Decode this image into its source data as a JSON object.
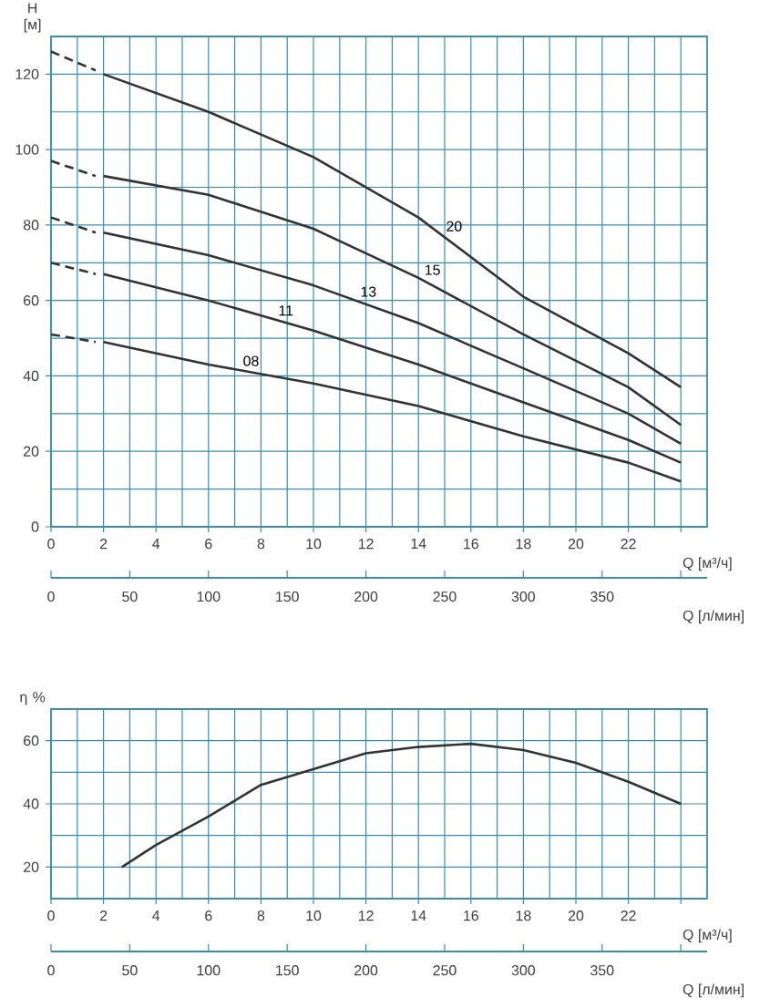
{
  "chart_data": [
    {
      "type": "line",
      "ylabel": "H [м]",
      "xlabel": "Q [м³/ч]",
      "x2label": "Q [л/мин]",
      "xlim": [
        0,
        25
      ],
      "ylim": [
        0,
        130
      ],
      "xticks": [
        0,
        2,
        4,
        6,
        8,
        10,
        12,
        14,
        16,
        18,
        20,
        22,
        {
          "value": 24,
          "label": null
        }
      ],
      "yticks": [
        0,
        20,
        40,
        60,
        80,
        100,
        120
      ],
      "x2lim": [
        0,
        416.7
      ],
      "x2ticks": [
        0,
        50,
        100,
        150,
        200,
        250,
        300,
        350,
        {
          "value": 400,
          "label": null
        }
      ],
      "grid": true,
      "marker": "none",
      "series": [
        {
          "name": "20",
          "color": "#333333",
          "x": [
            2,
            6,
            10,
            14,
            18,
            22,
            24
          ],
          "values": [
            120,
            110,
            98,
            82,
            61,
            46,
            37
          ]
        },
        {
          "name": "15",
          "color": "#333333",
          "x": [
            2,
            6,
            10,
            14,
            18,
            22,
            24
          ],
          "values": [
            93,
            88,
            79,
            66,
            51,
            37,
            27
          ]
        },
        {
          "name": "13",
          "color": "#333333",
          "x": [
            2,
            6,
            10,
            14,
            18,
            22,
            24
          ],
          "values": [
            78,
            72,
            64,
            54,
            42,
            30,
            22
          ]
        },
        {
          "name": "11",
          "color": "#333333",
          "x": [
            2,
            6,
            10,
            14,
            18,
            22,
            24
          ],
          "values": [
            67,
            60,
            52,
            43,
            33,
            23,
            17
          ]
        },
        {
          "name": "08",
          "color": "#333333",
          "x": [
            2,
            6,
            10,
            14,
            18,
            22,
            24
          ],
          "values": [
            49,
            43,
            38,
            32,
            24,
            17,
            12
          ]
        },
        {
          "color": "#333333",
          "line_style": "dashed",
          "x": [
            0,
            1.7
          ],
          "values": [
            126,
            121
          ]
        },
        {
          "color": "#333333",
          "line_style": "dashed",
          "x": [
            0,
            1.7
          ],
          "values": [
            97,
            93
          ]
        },
        {
          "color": "#333333",
          "line_style": "dashed",
          "x": [
            0,
            1.7
          ],
          "values": [
            82,
            78
          ]
        },
        {
          "color": "#333333",
          "line_style": "dashed",
          "x": [
            0,
            1.7
          ],
          "values": [
            70,
            67
          ]
        },
        {
          "color": "#333333",
          "line_style": "dashed",
          "x": [
            0,
            1.7
          ],
          "values": [
            51,
            49
          ]
        }
      ]
    },
    {
      "type": "line",
      "ylabel": "η %",
      "xlabel": "Q [м³/ч]",
      "x2label": "Q [л/мин]",
      "xlim": [
        0,
        25
      ],
      "ylim": [
        10,
        70
      ],
      "xticks": [
        0,
        2,
        4,
        6,
        8,
        10,
        12,
        14,
        16,
        18,
        20,
        22,
        {
          "value": 24,
          "label": null
        }
      ],
      "yticks": [
        20,
        40,
        60
      ],
      "x2lim": [
        0,
        416.7
      ],
      "x2ticks": [
        0,
        50,
        100,
        150,
        200,
        250,
        300,
        350,
        {
          "value": 400,
          "label": null
        }
      ],
      "grid": true,
      "marker": "none",
      "series": [
        {
          "color": "#333333",
          "x": [
            2.7,
            4,
            6,
            8,
            10,
            12,
            14,
            16,
            18,
            20,
            22,
            24
          ],
          "values": [
            20,
            27,
            36,
            46,
            51,
            56,
            58,
            59,
            57,
            53,
            47,
            40
          ]
        }
      ]
    }
  ]
}
